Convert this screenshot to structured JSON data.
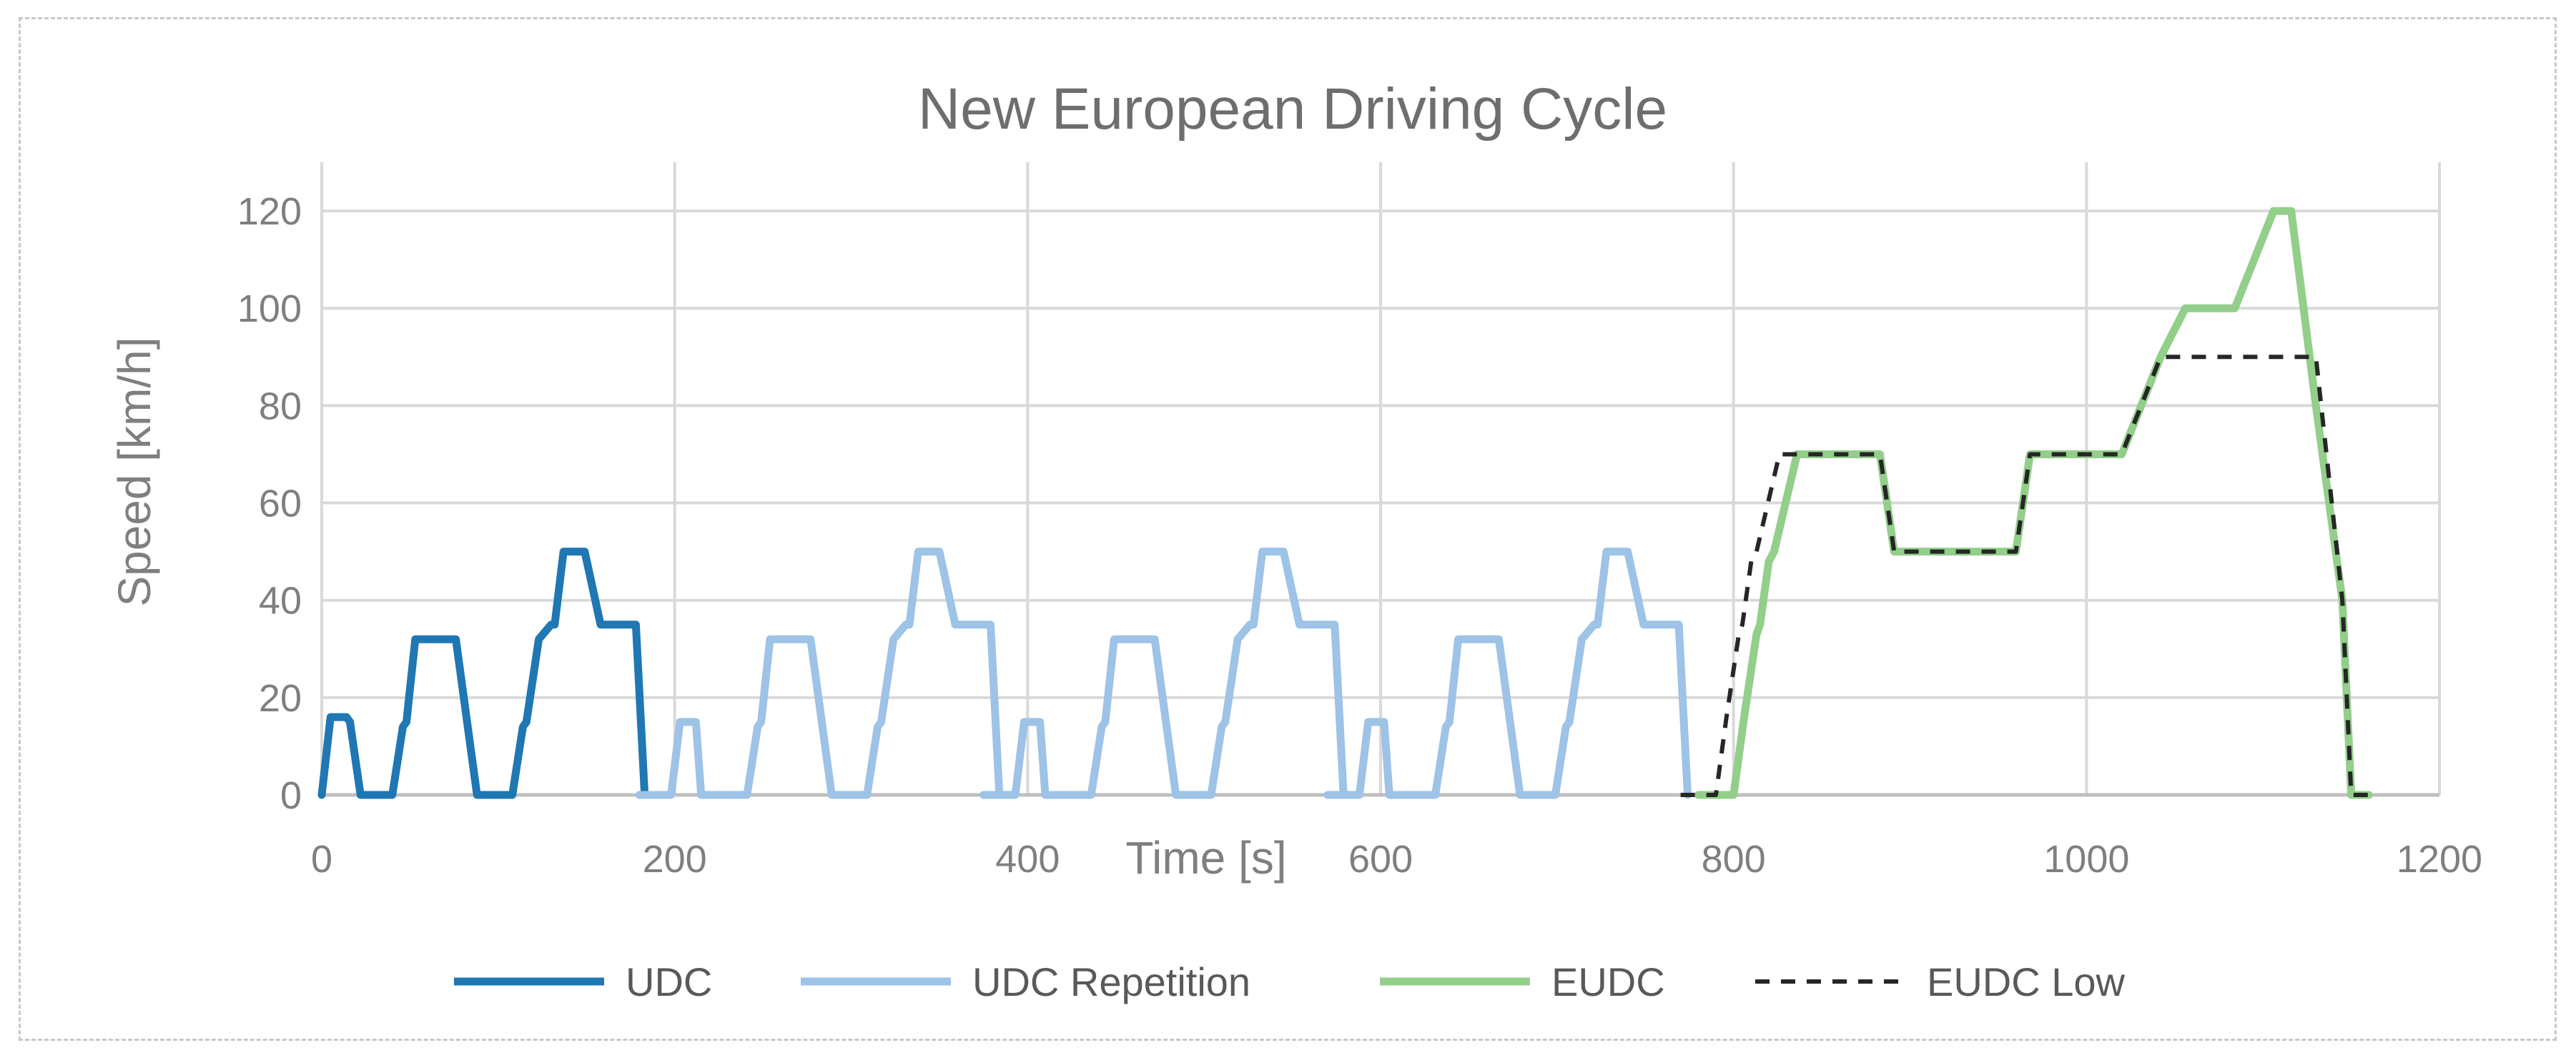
{
  "chart_data": {
    "type": "line",
    "title": "New European Driving Cycle",
    "xlabel": "Time [s]",
    "ylabel": "Speed [km/h]",
    "xlim": [
      0,
      1200
    ],
    "ylim": [
      0,
      130
    ],
    "x_ticks": [
      0,
      200,
      400,
      600,
      800,
      1000,
      1200
    ],
    "y_ticks": [
      0,
      20,
      40,
      60,
      80,
      100,
      120
    ],
    "grid": true,
    "legend_position": "bottom",
    "series": [
      {
        "name": "UDC",
        "color": "#1f77b4",
        "style": "solid",
        "x": [
          0,
          5,
          14,
          16,
          22,
          40,
          46,
          48,
          53,
          76,
          88,
          108,
          114,
          116,
          123,
          130,
          132,
          137,
          149,
          158,
          166,
          178,
          183
        ],
        "y": [
          0,
          16,
          16,
          15,
          0,
          0,
          14,
          15,
          32,
          32,
          0,
          0,
          14,
          15,
          32,
          35,
          35,
          50,
          50,
          35,
          35,
          35,
          0
        ]
      },
      {
        "name": "UDC Repetition",
        "color": "#9dc3e6",
        "style": "solid",
        "x": [
          180,
          195,
          198,
          203,
          212,
          215,
          223,
          241,
          247,
          249,
          254,
          277,
          289,
          309,
          315,
          317,
          324,
          331,
          333,
          338,
          350,
          359,
          367,
          379,
          384,
          375,
          390,
          393,
          398,
          407,
          410,
          418,
          436,
          442,
          444,
          449,
          472,
          484,
          504,
          510,
          512,
          519,
          526,
          528,
          533,
          545,
          554,
          562,
          574,
          579,
          570,
          585,
          588,
          593,
          602,
          605,
          613,
          631,
          637,
          639,
          644,
          667,
          679,
          699,
          705,
          707,
          714,
          721,
          723,
          728,
          740,
          749,
          757,
          769,
          774
        ],
        "y": [
          0,
          0,
          0,
          15,
          15,
          0,
          0,
          0,
          14,
          15,
          32,
          32,
          0,
          0,
          14,
          15,
          32,
          35,
          35,
          50,
          50,
          35,
          35,
          35,
          0,
          0,
          0,
          0,
          15,
          15,
          0,
          0,
          0,
          14,
          15,
          32,
          32,
          0,
          0,
          14,
          15,
          32,
          35,
          35,
          50,
          50,
          35,
          35,
          35,
          0,
          0,
          0,
          0,
          15,
          15,
          0,
          0,
          0,
          14,
          15,
          32,
          32,
          0,
          0,
          14,
          15,
          32,
          35,
          35,
          50,
          50,
          35,
          35,
          35,
          0
        ]
      },
      {
        "name": "EUDC",
        "color": "#93cf8b",
        "style": "solid",
        "x": [
          780,
          800,
          806,
          813,
          815,
          820,
          823,
          836,
          883,
          891,
          960,
          968,
          1020,
          1042,
          1056,
          1084,
          1106,
          1116,
          1130,
          1145,
          1150,
          1160
        ],
        "y": [
          0,
          0,
          16,
          33,
          35,
          48,
          50,
          70,
          70,
          50,
          50,
          70,
          70,
          90,
          100,
          100,
          120,
          120,
          80,
          40,
          0,
          0
        ]
      },
      {
        "name": "EUDC Low",
        "color": "#262626",
        "style": "dashed",
        "x": [
          770,
          790,
          796,
          803,
          805,
          810,
          813,
          826,
          883,
          891,
          960,
          968,
          1020,
          1042,
          1130,
          1145,
          1150,
          1160
        ],
        "y": [
          0,
          0,
          16,
          33,
          35,
          48,
          50,
          70,
          70,
          50,
          50,
          70,
          70,
          90,
          90,
          40,
          0,
          0
        ]
      }
    ]
  }
}
